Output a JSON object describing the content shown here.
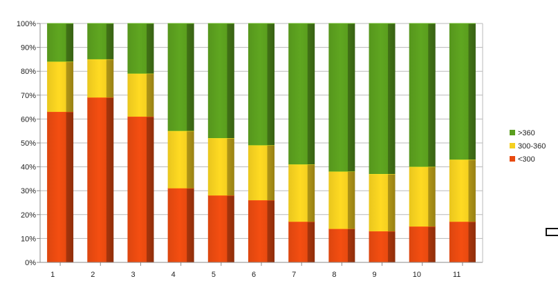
{
  "chart_data": {
    "type": "bar",
    "stacked": true,
    "normalized": true,
    "categories": [
      "1",
      "2",
      "3",
      "4",
      "5",
      "6",
      "7",
      "8",
      "9",
      "10",
      "11"
    ],
    "series": [
      {
        "name": "<300",
        "color": "#e84a10",
        "values": [
          63,
          69,
          61,
          31,
          28,
          26,
          17,
          14,
          13,
          15,
          17
        ]
      },
      {
        "name": "300-360",
        "color": "#f5d020",
        "values": [
          21,
          16,
          18,
          24,
          24,
          23,
          24,
          24,
          24,
          25,
          26
        ]
      },
      {
        "name": ">360",
        "color": "#5a9e1e",
        "values": [
          16,
          15,
          21,
          45,
          48,
          51,
          59,
          62,
          63,
          60,
          57
        ]
      }
    ],
    "ylim": [
      0,
      100
    ],
    "yticks": [
      "0%",
      "10%",
      "20%",
      "30%",
      "40%",
      "50%",
      "60%",
      "70%",
      "80%",
      "90%",
      "100%"
    ],
    "grid": true,
    "legend_position": "right",
    "legend_order": [
      ">360",
      "300-360",
      "<300"
    ],
    "title": "",
    "xlabel": "",
    "ylabel": ""
  }
}
